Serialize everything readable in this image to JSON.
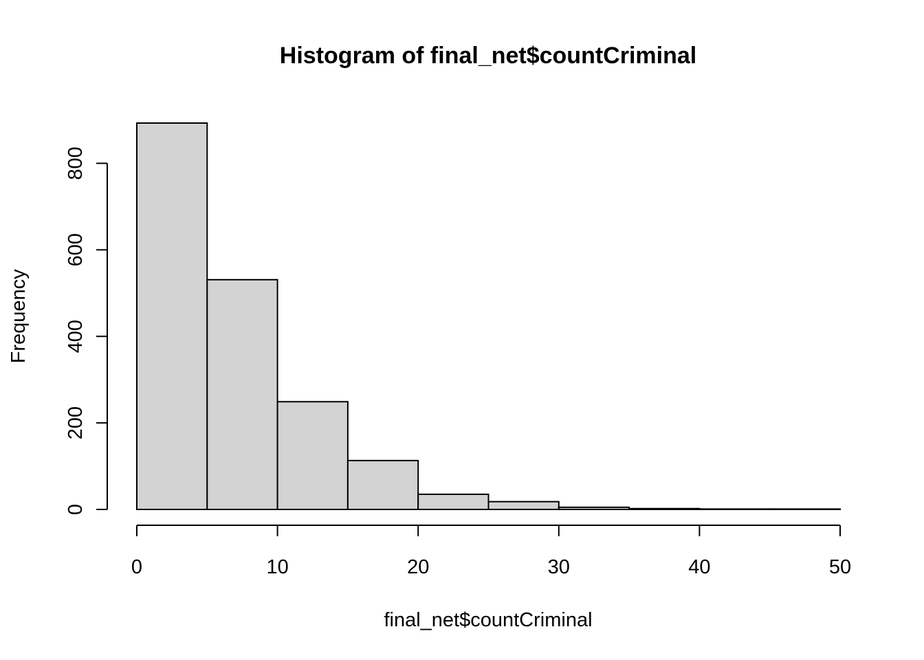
{
  "chart_data": {
    "type": "bar",
    "subtype": "histogram",
    "title": "Histogram of final_net$countCriminal",
    "xlabel": "final_net$countCriminal",
    "ylabel": "Frequency",
    "bins": [
      {
        "start": 0,
        "end": 5,
        "count": 893
      },
      {
        "start": 5,
        "end": 10,
        "count": 531
      },
      {
        "start": 10,
        "end": 15,
        "count": 249
      },
      {
        "start": 15,
        "end": 20,
        "count": 113
      },
      {
        "start": 20,
        "end": 25,
        "count": 35
      },
      {
        "start": 25,
        "end": 30,
        "count": 18
      },
      {
        "start": 30,
        "end": 35,
        "count": 5
      },
      {
        "start": 35,
        "end": 40,
        "count": 2
      },
      {
        "start": 40,
        "end": 45,
        "count": 1
      },
      {
        "start": 45,
        "end": 50,
        "count": 1
      }
    ],
    "xlim": [
      0,
      50
    ],
    "ylim": [
      0,
      893
    ],
    "x_ticks": [
      0,
      10,
      20,
      30,
      40,
      50
    ],
    "y_ticks": [
      0,
      200,
      400,
      600,
      800
    ],
    "bar_fill": "#d3d3d3",
    "bar_edge": "#000000",
    "grid": false,
    "legend": "none"
  }
}
